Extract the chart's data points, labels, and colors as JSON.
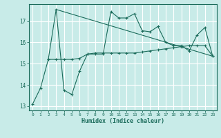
{
  "xlabel": "Humidex (Indice chaleur)",
  "background_color": "#c8ebe8",
  "grid_color": "#ffffff",
  "line_color": "#1a6b5a",
  "xlim": [
    -0.5,
    23.5
  ],
  "ylim": [
    12.8,
    17.8
  ],
  "yticks": [
    13,
    14,
    15,
    16,
    17
  ],
  "xticks": [
    0,
    1,
    2,
    3,
    4,
    5,
    6,
    7,
    8,
    9,
    10,
    11,
    12,
    13,
    14,
    15,
    16,
    17,
    18,
    19,
    20,
    21,
    22,
    23
  ],
  "line1_x": [
    0,
    1,
    2,
    3,
    4,
    5,
    6,
    7,
    8,
    9,
    10,
    11,
    12,
    13,
    14,
    15,
    16,
    17,
    18,
    19,
    20,
    21,
    22,
    23
  ],
  "line1_y": [
    13.1,
    13.85,
    15.2,
    17.55,
    13.75,
    13.55,
    14.65,
    15.45,
    15.45,
    15.45,
    17.45,
    17.15,
    17.15,
    17.35,
    16.55,
    16.5,
    16.75,
    16.0,
    15.85,
    15.85,
    15.6,
    16.35,
    16.7,
    15.35
  ],
  "line2_x": [
    2,
    3,
    4,
    5,
    6,
    7,
    8,
    9,
    10,
    11,
    12,
    13,
    14,
    15,
    16,
    17,
    18,
    19,
    20,
    21,
    22,
    23
  ],
  "line2_y": [
    15.2,
    15.2,
    15.2,
    15.2,
    15.25,
    15.45,
    15.5,
    15.5,
    15.5,
    15.5,
    15.5,
    15.5,
    15.55,
    15.6,
    15.65,
    15.7,
    15.75,
    15.8,
    15.85,
    15.85,
    15.85,
    15.35
  ],
  "line3_x": [
    3,
    23
  ],
  "line3_y": [
    17.55,
    15.35
  ]
}
